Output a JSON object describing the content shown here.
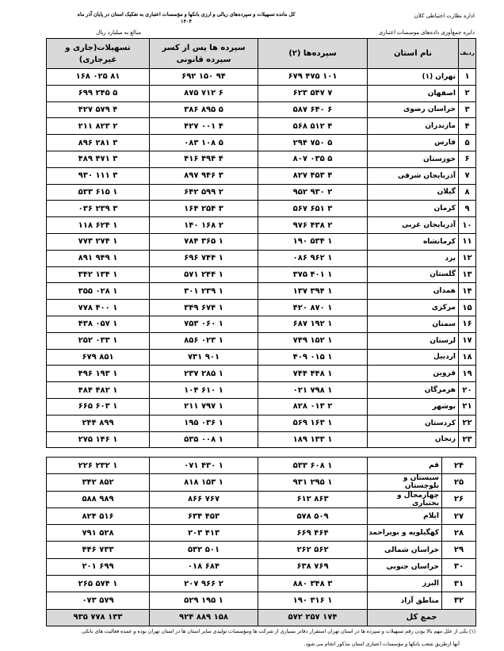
{
  "header": {
    "title": "کل مانده تسهیلات و سپرده‌های ریالی و ارزی بانکها و مؤسسات اعتباری به تفکیک استان در پایان آذر ماه ۱۴۰۴",
    "department": "اداره نظارت احتیاطی کلان",
    "division": "دایره جمع‌آوری داده‌های موسسات اعتباری",
    "unit": "مبالغ به میلیارد ریال"
  },
  "table": {
    "columns": [
      "ردیف",
      "نام استان",
      "سپرده‌ها (۲)",
      "سپرده ها پس از کسر سپرده قانونی",
      "تسهیلات(جاری و غیرجاری)"
    ],
    "rows_part1": [
      [
        "۱",
        "تهران (۱)",
        "۱۰۱ ۴۷۵ ۶۷۹",
        "۹۴ ۱۵۰ ۶۹۲",
        "۸۱ ۰۲۵ ۱۶۸"
      ],
      [
        "۲",
        "اصفهان",
        "۷ ۵۴۷ ۶۲۳",
        "۶ ۷۱۲ ۸۷۵",
        "۵ ۲۴۵ ۶۹۹"
      ],
      [
        "۳",
        "خراسان رضوی",
        "۶ ۶۴۰ ۵۸۷",
        "۵ ۸۹۵ ۳۸۶",
        "۴ ۵۷۹ ۴۲۷"
      ],
      [
        "۴",
        "مازندران",
        "۴ ۵۱۲ ۵۶۸",
        "۴ ۰۰۱ ۴۲۷",
        "۲ ۸۲۳ ۲۱۱"
      ],
      [
        "۵",
        "فارس",
        "۵ ۷۵۰ ۲۹۴",
        "۵ ۱۰۸ ۰۸۳",
        "۳ ۲۸۱ ۸۹۶"
      ],
      [
        "۶",
        "خوزستان",
        "۵ ۰۳۵ ۸۰۷",
        "۴ ۴۹۴ ۴۱۶",
        "۳ ۴۷۱ ۴۸۹"
      ],
      [
        "۷",
        "آذربایجان شرقی",
        "۴ ۴۵۳ ۸۲۷",
        "۳ ۹۴۶ ۸۹۷",
        "۳ ۱۱۱ ۹۳۰"
      ],
      [
        "۸",
        "گیلان",
        "۲ ۹۳۰ ۹۵۲",
        "۲ ۵۹۹ ۶۴۲",
        "۱ ۶۱۵ ۵۳۳"
      ],
      [
        "۹",
        "کرمان",
        "۳ ۶۵۱ ۵۶۷",
        "۳ ۲۵۴ ۱۶۴",
        "۳ ۲۳۹ ۰۳۶"
      ],
      [
        "۱۰",
        "آذربایجان غربی",
        "۲ ۴۳۸ ۹۷۶",
        "۲ ۱۶۸ ۱۴۰",
        "۱ ۶۲۴ ۱۱۸"
      ],
      [
        "۱۱",
        "کرمانشاه",
        "۱ ۵۳۴ ۱۹۰",
        "۱ ۳۶۵ ۷۸۴",
        "۱ ۲۷۴ ۷۷۳"
      ],
      [
        "۱۲",
        "یزد",
        "۱ ۹۶۲ ۰۸۶",
        "۱ ۷۴۴ ۶۹۶",
        "۱ ۹۴۹ ۸۹۱"
      ],
      [
        "۱۳",
        "گلستان",
        "۱ ۴۰۱ ۳۷۵",
        "۱ ۲۴۴ ۵۷۱",
        "۱ ۱۳۴ ۳۴۲"
      ],
      [
        "۱۴",
        "همدان",
        "۱ ۳۹۴ ۱۳۷",
        "۱ ۲۳۹ ۳۰۱",
        "۱ ۰۲۸ ۳۵۵"
      ],
      [
        "۱۵",
        "مرکزی",
        "۱ ۸۷۰ ۴۲۰",
        "۱ ۶۷۴ ۳۴۹",
        "۱ ۴۰۰ ۷۷۸"
      ],
      [
        "۱۶",
        "سمنان",
        "۱ ۱۹۲ ۶۸۷",
        "۱ ۰۶۰ ۷۵۳",
        "۱ ۰۵۷ ۴۳۸"
      ],
      [
        "۱۷",
        "لرستان",
        "۱ ۱۵۲ ۷۴۹",
        "۱ ۰۲۳ ۸۵۶",
        "۱ ۰۳۳ ۲۵۲"
      ],
      [
        "۱۸",
        "اردبیل",
        "۱ ۰۱۵ ۴۰۹",
        "۹۰۱ ۷۳۱",
        "۸۵۱ ۶۷۹"
      ],
      [
        "۱۹",
        "قزوین",
        "۱ ۴۴۸ ۷۴۴",
        "۱ ۲۸۵ ۲۳۷",
        "۱ ۱۹۳ ۴۹۶"
      ],
      [
        "۲۰",
        "هرمزگان",
        "۱ ۷۹۸ ۰۲۱",
        "۱ ۶۱۰ ۱۰۴",
        "۱ ۴۸۲ ۴۸۴"
      ],
      [
        "۲۱",
        "بوشهر",
        "۲ ۰۱۳ ۸۲۸",
        "۱ ۷۹۷ ۲۱۱",
        "۱ ۶۰۳ ۶۶۵"
      ],
      [
        "۲۲",
        "کردستان",
        "۱ ۱۶۳ ۵۶۹",
        "۱ ۰۳۶ ۱۹۵",
        "۸۹۹ ۲۴۴"
      ],
      [
        "۲۳",
        "زنجان",
        "۱ ۱۳۳ ۱۸۹",
        "۱ ۰۰۸ ۵۳۵",
        "۱ ۱۴۶ ۲۷۵"
      ]
    ],
    "rows_part2": [
      [
        "۲۴",
        "قم",
        "۱ ۶۰۸ ۵۳۳",
        "۱ ۴۳۰ ۰۷۱",
        "۱ ۲۳۲ ۲۲۶"
      ],
      [
        "۲۵",
        "سیستان و بلوچستان",
        "۱ ۲۹۵ ۹۳۱",
        "۱ ۱۵۳ ۸۱۸",
        "۸۵۲ ۳۴۲"
      ],
      [
        "۲۶",
        "چهارمحال و بختیاری",
        "۸۶۳ ۶۱۲",
        "۷۶۷ ۸۶۶",
        "۹۸۹ ۵۸۸"
      ],
      [
        "۲۷",
        "ایلام",
        "۵۰۹ ۵۷۸",
        "۴۵۳ ۶۳۴",
        "۵۱۶ ۸۲۴"
      ],
      [
        "۲۸",
        "کهگیلویه و بویراحمد",
        "۴۶۴ ۶۶۹",
        "۴۱۳ ۲۰۳",
        "۵۲۸ ۷۹۱"
      ],
      [
        "۲۹",
        "خراسان شمالی",
        "۵۶۲ ۲۶۲",
        "۵۰۱ ۵۳۲",
        "۷۳۳ ۴۴۶"
      ],
      [
        "۳۰",
        "خراسان جنوبی",
        "۷۶۹ ۶۳۸",
        "۶۸۴ ۰۱۸",
        "۶۹۹ ۲۰۱"
      ],
      [
        "۳۱",
        "البرز",
        "۳ ۳۴۸ ۸۸۰",
        "۲ ۹۶۶ ۲۰۷",
        "۱ ۵۷۴ ۲۶۵"
      ],
      [
        "۳۲",
        "مناطق آزاد",
        "۱ ۳۱۶ ۱۹۰",
        "۱ ۱۹۵ ۵۲۹",
        "۵۷۹ ۰۷۳"
      ]
    ],
    "total": {
      "label": "جمع کل",
      "deposits": "۱۷۴ ۲۵۷ ۵۷۲",
      "deposits_net": "۱۵۸ ۸۸۹ ۹۲۴",
      "loans": "۱۳۳ ۷۷۸ ۹۳۵"
    }
  },
  "footnote": {
    "line1": "(۱) یکی از علل مهم بالا بودن رقم تسهیلات و سپرده ها در استان تهران استقرار دفاتر بسیاری از شرکت ها ومؤسسات تولیدی سایر استان ها در استان تهران بوده و عمده فعالیت های بانکی",
    "line2": "آنها ازطریق شعب بانکها و مؤسسات اعتباری استان مذکور انجام می شود."
  }
}
